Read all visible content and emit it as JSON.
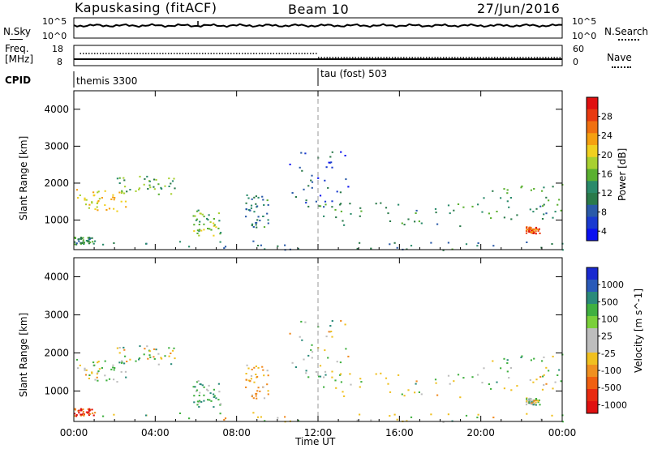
{
  "header": {
    "station": "Kapuskasing (fitACF)",
    "beam": "Beam 10",
    "date": "27/Jun/2016"
  },
  "noise_panel": {
    "left_label": "N.Sky",
    "right_label": "N.Search",
    "left_ticks": [
      "10^5",
      "10^0"
    ],
    "right_ticks": [
      "10^5",
      "10^0"
    ]
  },
  "freq_panel": {
    "left_label_top": "Freq.",
    "left_label_bottom": "[MHz]",
    "right_label": "Nave",
    "left_ticks": [
      "18",
      "8"
    ],
    "right_ticks": [
      "60",
      "0"
    ]
  },
  "cpid_panel": {
    "label": "CPID",
    "segments": [
      {
        "name": "themis 3300",
        "start_hour": 0
      },
      {
        "name": "tau (fost) 503",
        "start_hour": 12
      }
    ]
  },
  "time_axis": {
    "label": "Time UT",
    "ticks": [
      "00:00",
      "04:00",
      "08:00",
      "12:00",
      "16:00",
      "20:00",
      "00:00"
    ]
  },
  "power_colorbar": {
    "label": "Power [dB]",
    "ticks": [
      "28",
      "24",
      "20",
      "16",
      "12",
      "8",
      "4"
    ],
    "colors": [
      "#e01010",
      "#e83a10",
      "#f07010",
      "#f5a010",
      "#f0d020",
      "#a8d030",
      "#5ab030",
      "#2a8a6a",
      "#2a7a4a",
      "#2a5aa8",
      "#1a3ad0",
      "#0a10f0"
    ]
  },
  "velocity_colorbar": {
    "label": "Velocity [m s^-1]",
    "ticks": [
      "1000",
      "500",
      "100",
      "25",
      "-25",
      "-100",
      "-500",
      "-1000"
    ],
    "colors": [
      "#1a2ad0",
      "#2a5ab8",
      "#2a8a7a",
      "#40b040",
      "#7ad03a",
      "#bdbdbd",
      "#bdbdbd",
      "#f0c020",
      "#f09020",
      "#f06010",
      "#e82a10",
      "#e01010"
    ]
  },
  "chart_data": [
    {
      "type": "heatmap",
      "title": "Power",
      "xlabel": "Time UT",
      "ylabel": "Slant Range [km]",
      "xlim": [
        0,
        24
      ],
      "ylim": [
        200,
        4500
      ],
      "yticks": [
        1000,
        2000,
        3000,
        4000
      ],
      "colorbar_label": "Power [dB]",
      "features": [
        {
          "t0": 0.0,
          "t1": 2.6,
          "r0": 1250,
          "r1": 1900,
          "value": 20
        },
        {
          "t0": 2.0,
          "t1": 5.0,
          "r0": 1700,
          "r1": 2200,
          "value": 14
        },
        {
          "t0": 0.0,
          "t1": 1.0,
          "r0": 350,
          "r1": 550,
          "value": 12
        },
        {
          "t0": 5.8,
          "t1": 7.2,
          "r0": 600,
          "r1": 1300,
          "value": 16
        },
        {
          "t0": 8.4,
          "t1": 9.6,
          "r0": 800,
          "r1": 1700,
          "value": 10
        },
        {
          "t0": 10.5,
          "t1": 13.5,
          "r0": 1300,
          "r1": 2900,
          "value": 6
        },
        {
          "t0": 12.0,
          "t1": 20.0,
          "r0": 850,
          "r1": 1500,
          "value": 12
        },
        {
          "t0": 20.0,
          "t1": 24.0,
          "r0": 1000,
          "r1": 2000,
          "value": 12
        },
        {
          "t0": 22.2,
          "t1": 22.9,
          "r0": 650,
          "r1": 850,
          "value": 26
        },
        {
          "t0": 0.0,
          "t1": 24.0,
          "r0": 200,
          "r1": 450,
          "value": 10
        }
      ]
    },
    {
      "type": "heatmap",
      "title": "Velocity",
      "xlabel": "Time UT",
      "ylabel": "Slant Range [km]",
      "xlim": [
        0,
        24
      ],
      "ylim": [
        200,
        4500
      ],
      "yticks": [
        1000,
        2000,
        3000,
        4000
      ],
      "colorbar_label": "Velocity [m s^-1]",
      "features": [
        {
          "t0": 0.0,
          "t1": 2.6,
          "r0": 1250,
          "r1": 1900,
          "value": 0
        },
        {
          "t0": 2.0,
          "t1": 5.0,
          "r0": 1700,
          "r1": 2200,
          "value": 0
        },
        {
          "t0": 0.0,
          "t1": 1.0,
          "r0": 350,
          "r1": 550,
          "value": -500
        },
        {
          "t0": 5.8,
          "t1": 7.2,
          "r0": 600,
          "r1": 1300,
          "value": 100
        },
        {
          "t0": 8.4,
          "t1": 9.6,
          "r0": 800,
          "r1": 1700,
          "value": -100
        },
        {
          "t0": 10.5,
          "t1": 13.5,
          "r0": 1300,
          "r1": 2900,
          "value": 0
        },
        {
          "t0": 12.0,
          "t1": 20.0,
          "r0": 850,
          "r1": 1500,
          "value": 0
        },
        {
          "t0": 20.0,
          "t1": 24.0,
          "r0": 1000,
          "r1": 2000,
          "value": 0
        },
        {
          "t0": 22.2,
          "t1": 22.9,
          "r0": 650,
          "r1": 850,
          "value": 0
        },
        {
          "t0": 0.0,
          "t1": 24.0,
          "r0": 200,
          "r1": 450,
          "value": 0
        }
      ]
    }
  ]
}
